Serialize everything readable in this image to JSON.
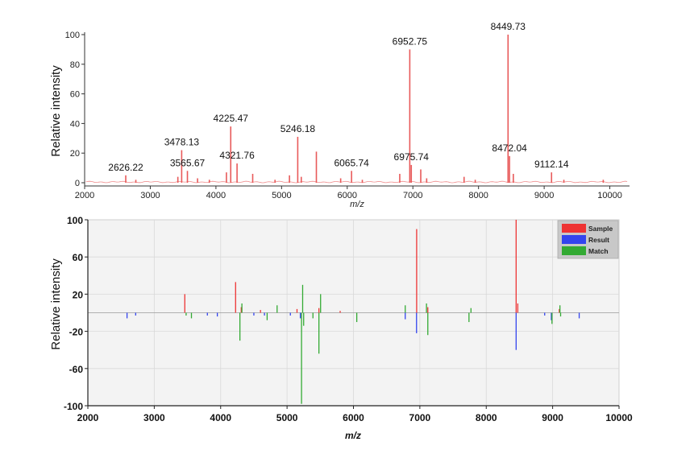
{
  "chart_data": [
    {
      "type": "line",
      "panel": "top",
      "xlabel": "m/z",
      "ylabel": "Relative intensity",
      "xlim": [
        2000,
        10300
      ],
      "ylim": [
        0,
        100
      ],
      "x_ticks": [
        2000,
        3000,
        4000,
        5000,
        6000,
        7000,
        8000,
        9000,
        10000
      ],
      "y_ticks": [
        0,
        20,
        40,
        60,
        80,
        100
      ],
      "grid": false,
      "series_color": "#e85a5a",
      "peaks": [
        {
          "x": 2626.22,
          "y": 5
        },
        {
          "x": 2780,
          "y": 2
        },
        {
          "x": 3420,
          "y": 4
        },
        {
          "x": 3478.13,
          "y": 22
        },
        {
          "x": 3565.67,
          "y": 8
        },
        {
          "x": 3720,
          "y": 3
        },
        {
          "x": 3900,
          "y": 2
        },
        {
          "x": 4160,
          "y": 7
        },
        {
          "x": 4225.47,
          "y": 38
        },
        {
          "x": 4321.76,
          "y": 13
        },
        {
          "x": 4560,
          "y": 6
        },
        {
          "x": 4900,
          "y": 2
        },
        {
          "x": 5120,
          "y": 5
        },
        {
          "x": 5246.18,
          "y": 31
        },
        {
          "x": 5300,
          "y": 4
        },
        {
          "x": 5530,
          "y": 21
        },
        {
          "x": 5900,
          "y": 3
        },
        {
          "x": 6065.74,
          "y": 8
        },
        {
          "x": 6230,
          "y": 2
        },
        {
          "x": 6800,
          "y": 6
        },
        {
          "x": 6952.75,
          "y": 90
        },
        {
          "x": 6975.74,
          "y": 12
        },
        {
          "x": 7120,
          "y": 9
        },
        {
          "x": 7210,
          "y": 3
        },
        {
          "x": 7780,
          "y": 4
        },
        {
          "x": 7950,
          "y": 2
        },
        {
          "x": 8449.73,
          "y": 100
        },
        {
          "x": 8472.04,
          "y": 18
        },
        {
          "x": 8530,
          "y": 6
        },
        {
          "x": 9112.14,
          "y": 7
        },
        {
          "x": 9300,
          "y": 2
        },
        {
          "x": 9900,
          "y": 2
        }
      ],
      "annotations": [
        {
          "label": "2626.22",
          "x": 2626.22,
          "y": 5
        },
        {
          "label": "3478.13",
          "x": 3478.13,
          "y": 22
        },
        {
          "label": "3565.67",
          "x": 3565.67,
          "y": 8
        },
        {
          "label": "4225.47",
          "x": 4225.47,
          "y": 38
        },
        {
          "label": "4321.76",
          "x": 4321.76,
          "y": 13
        },
        {
          "label": "5246.18",
          "x": 5246.18,
          "y": 31
        },
        {
          "label": "6065.74",
          "x": 6065.74,
          "y": 8
        },
        {
          "label": "6952.75",
          "x": 6952.75,
          "y": 90
        },
        {
          "label": "6975.74",
          "x": 6975.74,
          "y": 12
        },
        {
          "label": "8449.73",
          "x": 8449.73,
          "y": 100
        },
        {
          "label": "8472.04",
          "x": 8472.04,
          "y": 18
        },
        {
          "label": "9112.14",
          "x": 9112.14,
          "y": 7
        }
      ]
    },
    {
      "type": "bar",
      "panel": "bottom",
      "xlabel": "m/z",
      "ylabel": "Relative intensity",
      "xlim": [
        2000,
        10000
      ],
      "ylim": [
        -100,
        100
      ],
      "x_ticks": [
        2000,
        3000,
        4000,
        5000,
        6000,
        7000,
        8000,
        9000,
        10000
      ],
      "y_ticks": [
        100,
        60,
        20,
        -20,
        -60,
        -100
      ],
      "grid": true,
      "legend_position": "top-right",
      "legend": [
        {
          "name": "Sample",
          "color": "#ee3333"
        },
        {
          "name": "Result",
          "color": "#3344ee"
        },
        {
          "name": "Match",
          "color": "#33aa33"
        }
      ],
      "series": [
        {
          "name": "Sample",
          "color": "#ee3333",
          "points": [
            {
              "x": 3460,
              "y": 20
            },
            {
              "x": 4225,
              "y": 33
            },
            {
              "x": 4310,
              "y": 6
            },
            {
              "x": 4600,
              "y": 3
            },
            {
              "x": 5150,
              "y": 4
            },
            {
              "x": 5480,
              "y": 5
            },
            {
              "x": 5800,
              "y": 2
            },
            {
              "x": 6952,
              "y": 90
            },
            {
              "x": 7120,
              "y": 6
            },
            {
              "x": 8450,
              "y": 100
            },
            {
              "x": 8475,
              "y": 10
            },
            {
              "x": 9100,
              "y": 4
            }
          ]
        },
        {
          "name": "Result",
          "color": "#3344ee",
          "points": [
            {
              "x": 2590,
              "y": -6
            },
            {
              "x": 2720,
              "y": -3
            },
            {
              "x": 3800,
              "y": -3
            },
            {
              "x": 3950,
              "y": -4
            },
            {
              "x": 4500,
              "y": -3
            },
            {
              "x": 4660,
              "y": -3
            },
            {
              "x": 5050,
              "y": -3
            },
            {
              "x": 5200,
              "y": -6
            },
            {
              "x": 6780,
              "y": -7
            },
            {
              "x": 6950,
              "y": -22
            },
            {
              "x": 8450,
              "y": -40
            },
            {
              "x": 8880,
              "y": -3
            },
            {
              "x": 8980,
              "y": -8
            },
            {
              "x": 9400,
              "y": -6
            }
          ]
        },
        {
          "name": "Match",
          "color": "#33aa33",
          "points": [
            {
              "x": 3480,
              "y": -3
            },
            {
              "x": 3560,
              "y": -6
            },
            {
              "x": 4290,
              "y": -30
            },
            {
              "x": 4320,
              "y": 10
            },
            {
              "x": 4700,
              "y": -8
            },
            {
              "x": 4850,
              "y": 8
            },
            {
              "x": 5218,
              "y": -98
            },
            {
              "x": 5235,
              "y": 30
            },
            {
              "x": 5250,
              "y": -14
            },
            {
              "x": 5390,
              "y": -6
            },
            {
              "x": 5480,
              "y": -44
            },
            {
              "x": 5505,
              "y": 20
            },
            {
              "x": 6050,
              "y": -10
            },
            {
              "x": 6780,
              "y": 8
            },
            {
              "x": 7120,
              "y": -24
            },
            {
              "x": 7100,
              "y": 10
            },
            {
              "x": 7740,
              "y": -10
            },
            {
              "x": 7770,
              "y": 5
            },
            {
              "x": 8990,
              "y": -12
            },
            {
              "x": 9110,
              "y": 8
            },
            {
              "x": 9120,
              "y": -4
            }
          ]
        }
      ]
    }
  ]
}
